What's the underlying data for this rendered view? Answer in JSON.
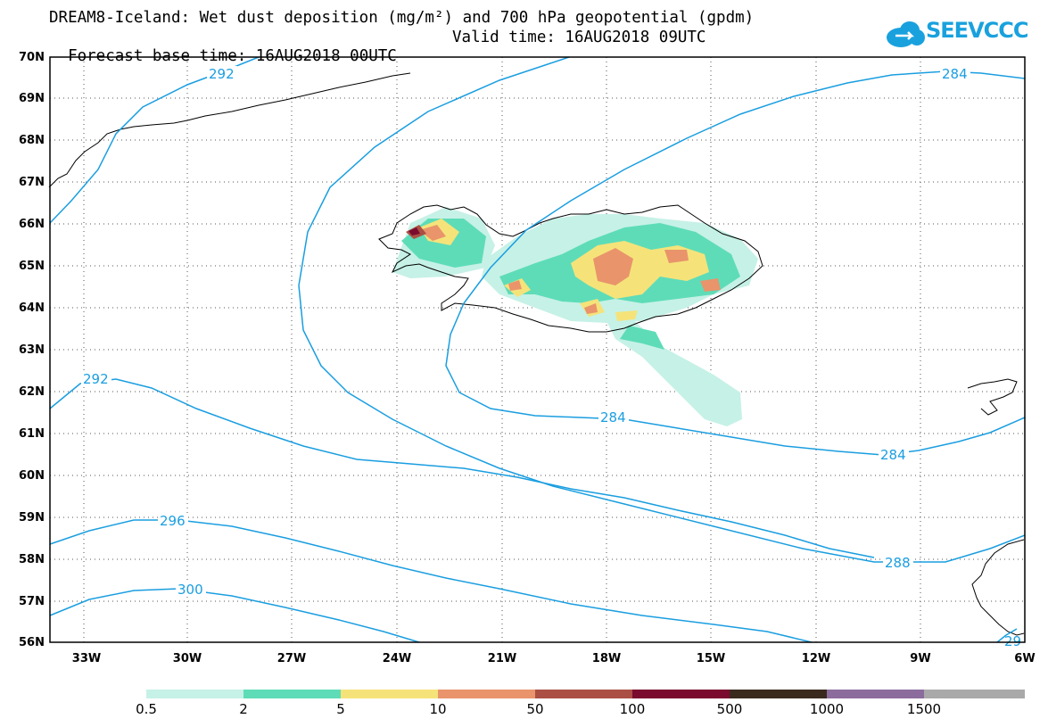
{
  "title": {
    "line1": "DREAM8-Iceland: Wet dust deposition (mg/m²) and 700 hPa geopotential (gpdm)",
    "forecast_base": "Forecast base time: 16AUG2018 00UTC",
    "valid_time": "Valid time: 16AUG2018 09UTC"
  },
  "logo": {
    "text": "SEEVCCC"
  },
  "axes": {
    "lat_labels": [
      "70N",
      "69N",
      "68N",
      "67N",
      "66N",
      "65N",
      "64N",
      "63N",
      "62N",
      "61N",
      "60N",
      "59N",
      "58N",
      "57N",
      "56N"
    ],
    "lon_labels": [
      "33W",
      "30W",
      "27W",
      "24W",
      "21W",
      "18W",
      "15W",
      "12W",
      "9W",
      "6W"
    ]
  },
  "contours": {
    "labels": [
      "292",
      "284",
      "292",
      "284",
      "284",
      "296",
      "288",
      "300",
      "29"
    ],
    "color": "#1a9ee0"
  },
  "legend": {
    "labels": [
      "0.5",
      "2",
      "5",
      "10",
      "50",
      "100",
      "500",
      "1000",
      "1500"
    ],
    "colors": [
      "#c6f1e6",
      "#5edcb8",
      "#f5e37a",
      "#e9946b",
      "#ab4f44",
      "#7a0a2e",
      "#3a2a1e",
      "#8c6c9c",
      "#a9a9a9"
    ]
  }
}
